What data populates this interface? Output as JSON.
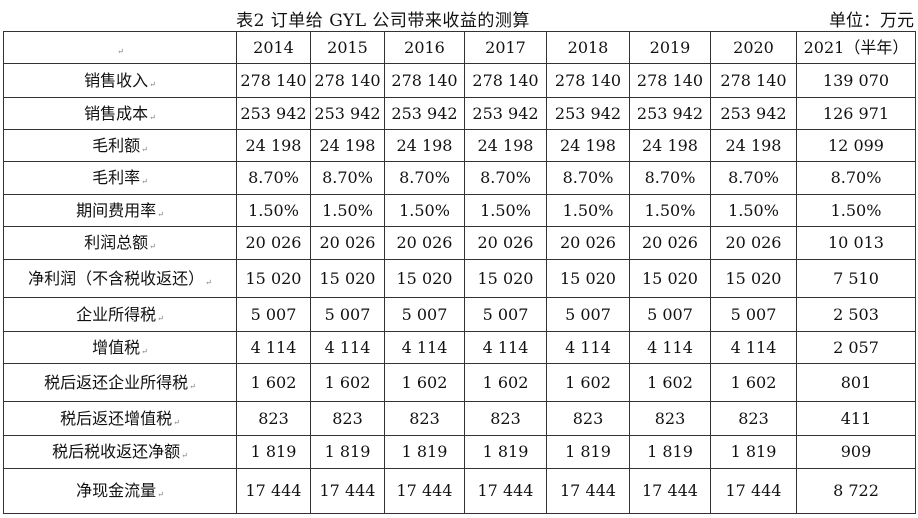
{
  "title": "表2 订单给 GYL 公司带来收益的测算",
  "unit": "单位：万元",
  "para_mark": "↵",
  "columns": [
    "2014",
    "2015",
    "2016",
    "2017",
    "2018",
    "2019",
    "2020",
    "2021（半年）"
  ],
  "rows": [
    {
      "label": "销售收入",
      "values": [
        "278 140",
        "278 140",
        "278 140",
        "278 140",
        "278 140",
        "278 140",
        "278 140",
        "139 070"
      ]
    },
    {
      "label": "销售成本",
      "values": [
        "253 942",
        "253 942",
        "253 942",
        "253 942",
        "253 942",
        "253 942",
        "253 942",
        "126 971"
      ]
    },
    {
      "label": "毛利额",
      "values": [
        "24 198",
        "24 198",
        "24 198",
        "24 198",
        "24 198",
        "24 198",
        "24 198",
        "12 099"
      ]
    },
    {
      "label": "毛利率",
      "values": [
        "8.70%",
        "8.70%",
        "8.70%",
        "8.70%",
        "8.70%",
        "8.70%",
        "8.70%",
        "8.70%"
      ]
    },
    {
      "label": "期间费用率",
      "values": [
        "1.50%",
        "1.50%",
        "1.50%",
        "1.50%",
        "1.50%",
        "1.50%",
        "1.50%",
        "1.50%"
      ]
    },
    {
      "label": "利润总额",
      "values": [
        "20 026",
        "20 026",
        "20 026",
        "20 026",
        "20 026",
        "20 026",
        "20 026",
        "10 013"
      ]
    },
    {
      "label": "净利润（不含税收返还）",
      "values": [
        "15 020",
        "15 020",
        "15 020",
        "15 020",
        "15 020",
        "15 020",
        "15 020",
        "7 510"
      ]
    },
    {
      "label": "企业所得税",
      "values": [
        "5 007",
        "5 007",
        "5 007",
        "5 007",
        "5 007",
        "5 007",
        "5 007",
        "2 503"
      ]
    },
    {
      "label": "增值税",
      "values": [
        "4 114",
        "4 114",
        "4 114",
        "4 114",
        "4 114",
        "4 114",
        "4 114",
        "2 057"
      ]
    },
    {
      "label": "税后返还企业所得税",
      "values": [
        "1 602",
        "1 602",
        "1 602",
        "1 602",
        "1 602",
        "1 602",
        "1 602",
        "801"
      ]
    },
    {
      "label": "税后返还增值税",
      "values": [
        "823",
        "823",
        "823",
        "823",
        "823",
        "823",
        "823",
        "411"
      ]
    },
    {
      "label": "税后税收返还净额",
      "values": [
        "1 819",
        "1 819",
        "1 819",
        "1 819",
        "1 819",
        "1 819",
        "1 819",
        "909"
      ]
    },
    {
      "label": "净现金流量",
      "values": [
        "17 444",
        "17 444",
        "17 444",
        "17 444",
        "17 444",
        "17 444",
        "17 444",
        "8 722"
      ]
    }
  ]
}
